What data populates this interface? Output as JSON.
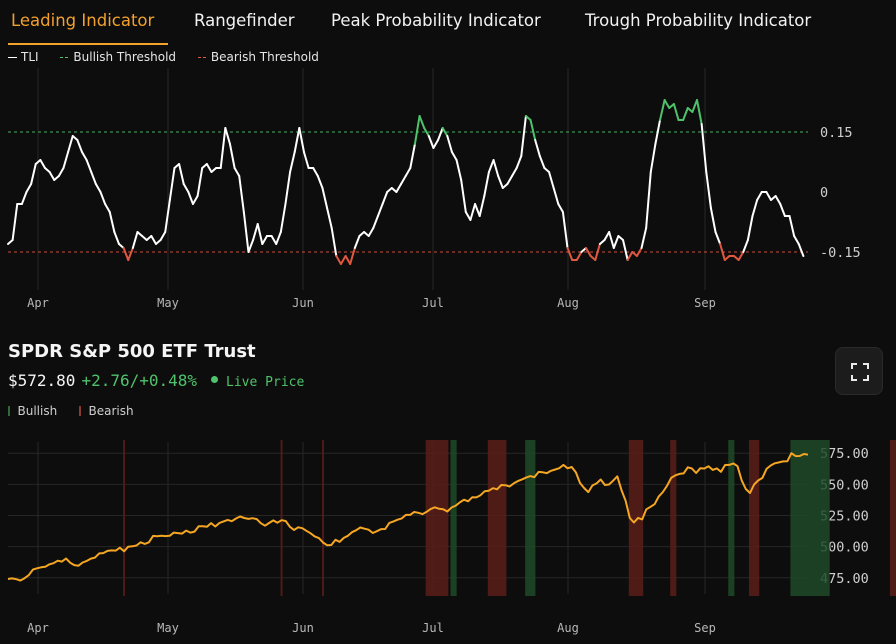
{
  "tabs": [
    {
      "label": "Leading Indicator",
      "active": true
    },
    {
      "label": "Rangefinder",
      "active": false
    },
    {
      "label": "Peak Probability Indicator",
      "active": false
    },
    {
      "label": "Trough Probability Indicator",
      "active": false
    }
  ],
  "colors": {
    "accent": "#f2a12c",
    "line": "#ffffff",
    "bullish": "#4fc26b",
    "bearish": "#e0583f",
    "price_line": "#f5a623",
    "bullish_band": "#1e4a28",
    "bearish_band": "#5a1e1a",
    "grid": "#262626"
  },
  "top_legend": {
    "tli": "TLI",
    "bullish": "Bullish Threshold",
    "bearish": "Bearish Threshold"
  },
  "asset": {
    "name": "SPDR S&P 500 ETF Trust",
    "price": "$572.80",
    "change": "+2.76/+0.48%",
    "live": "Live Price"
  },
  "bottom_legend": {
    "bullish": "Bullish",
    "bearish": "Bearish"
  },
  "icons": {
    "expand": "expand-icon",
    "live": "live-dot-icon"
  },
  "chart_data": [
    {
      "type": "line",
      "x_ticks": [
        "Apr",
        "May",
        "Jun",
        "Jul",
        "Aug",
        "Sep"
      ],
      "y_ticks": [
        "0.15",
        "0",
        "-0.15"
      ],
      "ylim": [
        -0.245,
        0.31
      ],
      "thresholds": {
        "bullish": 0.15,
        "bearish": -0.15
      },
      "grid": true,
      "series": [
        {
          "name": "TLI",
          "x_range": [
            0,
            173
          ],
          "values": [
            -0.13,
            -0.12,
            -0.03,
            -0.03,
            0.0,
            0.02,
            0.07,
            0.08,
            0.06,
            0.05,
            0.03,
            0.04,
            0.06,
            0.1,
            0.14,
            0.13,
            0.1,
            0.08,
            0.05,
            0.02,
            0.0,
            -0.03,
            -0.05,
            -0.1,
            -0.13,
            -0.14,
            -0.17,
            -0.14,
            -0.1,
            -0.11,
            -0.12,
            -0.11,
            -0.13,
            -0.12,
            -0.1,
            -0.02,
            0.06,
            0.07,
            0.02,
            0.0,
            -0.03,
            -0.01,
            0.06,
            0.07,
            0.05,
            0.06,
            0.06,
            0.16,
            0.12,
            0.06,
            0.04,
            -0.05,
            -0.15,
            -0.12,
            -0.08,
            -0.13,
            -0.11,
            -0.11,
            -0.13,
            -0.1,
            -0.03,
            0.05,
            0.1,
            0.16,
            0.1,
            0.06,
            0.06,
            0.04,
            0.01,
            -0.04,
            -0.09,
            -0.16,
            -0.18,
            -0.16,
            -0.18,
            -0.14,
            -0.11,
            -0.1,
            -0.11,
            -0.09,
            -0.06,
            -0.03,
            0.0,
            0.01,
            0.0,
            0.02,
            0.04,
            0.06,
            0.12,
            0.19,
            0.16,
            0.14,
            0.11,
            0.13,
            0.16,
            0.14,
            0.1,
            0.08,
            0.03,
            -0.05,
            -0.07,
            -0.03,
            -0.06,
            -0.01,
            0.05,
            0.08,
            0.04,
            0.01,
            0.02,
            0.04,
            0.06,
            0.09,
            0.19,
            0.18,
            0.13,
            0.09,
            0.06,
            0.05,
            0.01,
            -0.03,
            -0.05,
            -0.14,
            -0.17,
            -0.17,
            -0.15,
            -0.14,
            -0.16,
            -0.17,
            -0.13,
            -0.12,
            -0.1,
            -0.14,
            -0.11,
            -0.12,
            -0.17,
            -0.15,
            -0.16,
            -0.14,
            -0.09,
            0.05,
            0.12,
            0.18,
            0.23,
            0.21,
            0.22,
            0.18,
            0.18,
            0.21,
            0.2,
            0.23,
            0.17,
            0.05,
            -0.04,
            -0.1,
            -0.13,
            -0.17,
            -0.16,
            -0.16,
            -0.17,
            -0.15,
            -0.12,
            -0.06,
            -0.02,
            0.0,
            0.0,
            -0.02,
            -0.01,
            -0.03,
            -0.06,
            -0.06,
            -0.11,
            -0.13,
            -0.16
          ]
        }
      ]
    },
    {
      "type": "line",
      "x_ticks": [
        "Apr",
        "May",
        "Jun",
        "Jul",
        "Aug",
        "Sep"
      ],
      "y_ticks": [
        "575.00",
        "550.00",
        "525.00",
        "500.00",
        "475.00"
      ],
      "ylim": [
        462,
        584
      ],
      "grid": true,
      "series": [
        {
          "name": "SPDR S&P 500 ETF Trust",
          "x_range": [
            0,
            173
          ],
          "values": [
            474.0,
            474.5,
            473.9,
            472.8,
            474.7,
            477.1,
            481.6,
            482.6,
            483.4,
            483.9,
            485.8,
            486.7,
            488.7,
            488.0,
            490.5,
            487.1,
            485.2,
            484.7,
            487.3,
            488.6,
            490.4,
            491.2,
            494.6,
            494.8,
            496.6,
            497.0,
            496.8,
            499.2,
            496.3,
            500.0,
            500.3,
            500.9,
            503.5,
            502.2,
            503.5,
            508.6,
            508.3,
            508.8,
            508.5,
            508.7,
            511.3,
            510.9,
            510.5,
            512.9,
            511.3,
            512.1,
            516.4,
            516.3,
            516.0,
            518.9,
            516.2,
            519.0,
            520.3,
            521.5,
            520.4,
            522.6,
            524.2,
            523.0,
            522.3,
            522.8,
            522.1,
            518.8,
            516.8,
            519.0,
            521.1,
            519.2,
            521.2,
            520.6,
            515.9,
            513.4,
            515.5,
            514.8,
            512.7,
            510.7,
            508.2,
            506.9,
            503.3,
            501.1,
            501.3,
            505.5,
            503.8,
            507.0,
            508.7,
            511.6,
            513.2,
            515.4,
            514.4,
            513.6,
            511.0,
            512.4,
            514.1,
            514.2,
            519.1,
            520.3,
            521.6,
            522.7,
            525.5,
            525.5,
            527.8,
            527.2,
            526.1,
            528.0,
            530.3,
            531.6,
            530.4,
            530.1,
            528.2,
            531.4,
            532.9,
            535.5,
            537.7,
            536.4,
            539.6,
            539.5,
            541.3,
            544.5,
            544.9,
            546.9,
            546.0,
            549.5,
            549.3,
            548.3,
            550.8,
            552.6,
            554.0,
            555.4,
            556.6,
            555.8,
            560.0,
            559.7,
            559.0,
            560.9,
            561.9,
            563.0,
            565.6,
            562.9,
            563.9,
            559.6,
            551.1,
            547.0,
            543.8,
            549.2,
            550.8,
            553.9,
            549.5,
            549.9,
            553.0,
            556.5,
            545.4,
            536.9,
            523.0,
            519.4,
            523.1,
            521.9,
            530.0,
            532.0,
            534.1,
            540.3,
            543.9,
            548.9,
            555.2,
            557.3,
            558.4,
            558.8,
            563.7,
            562.7,
            559.1,
            562.9,
            562.7,
            564.5,
            561.6,
            562.8,
            560.1,
            565.5,
            565.6,
            566.8,
            564.6,
            553.2,
            546.3,
            543.1,
            549.9,
            553.2,
            555.2,
            562.4,
            565.1,
            566.9,
            567.6,
            568.4,
            568.5,
            575.0,
            572.7,
            572.8,
            574.4,
            573.8
          ]
        }
      ],
      "bullish_regions": [
        [
          107,
          108
        ],
        [
          125,
          127
        ],
        [
          174,
          175
        ],
        [
          189,
          198
        ]
      ],
      "bearish_regions": [
        [
          28,
          28
        ],
        [
          66,
          66
        ],
        [
          76,
          76
        ],
        [
          101,
          106
        ],
        [
          116,
          120
        ],
        [
          150,
          153
        ],
        [
          160,
          161
        ],
        [
          179,
          181
        ],
        [
          213,
          215
        ]
      ]
    }
  ]
}
